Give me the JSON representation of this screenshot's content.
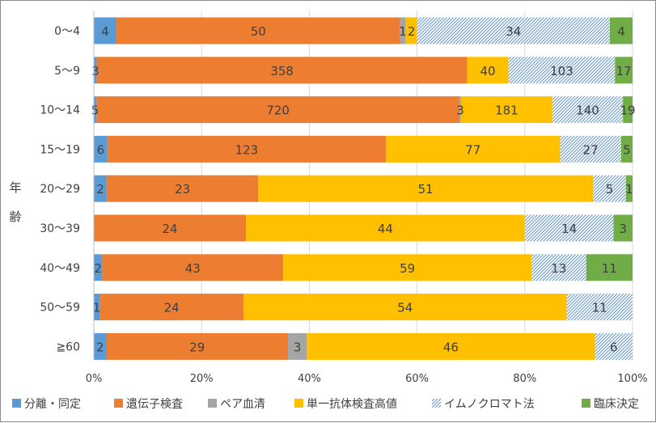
{
  "chart_data": {
    "type": "bar",
    "orientation": "horizontal",
    "stacked": "percent",
    "ylabel": "年齢",
    "categories": [
      "0～4",
      "5～9",
      "10～14",
      "15～19",
      "20～29",
      "30～39",
      "40～49",
      "50～59",
      "≧60"
    ],
    "x_ticks": [
      "0%",
      "20%",
      "40%",
      "60%",
      "80%",
      "100%"
    ],
    "xlim": [
      0,
      100
    ],
    "grid": true,
    "legend_position": "bottom",
    "series": [
      {
        "name": "分離・同定",
        "color": "#5b9bd5",
        "pattern": "solid",
        "values": [
          4,
          3,
          5,
          6,
          2,
          0,
          2,
          1,
          2
        ]
      },
      {
        "name": "遺伝子検査",
        "color": "#ed7d31",
        "pattern": "solid",
        "values": [
          50,
          358,
          720,
          123,
          23,
          24,
          43,
          24,
          29
        ]
      },
      {
        "name": "ペア血清",
        "color": "#a5a5a5",
        "pattern": "solid",
        "values": [
          1,
          0,
          3,
          0,
          0,
          0,
          0,
          0,
          3
        ]
      },
      {
        "name": "単一抗体検査高値",
        "color": "#ffc000",
        "pattern": "solid",
        "values": [
          2,
          40,
          181,
          77,
          51,
          44,
          59,
          54,
          46
        ]
      },
      {
        "name": "イムノクロマト法",
        "color": "#5b9bd5",
        "pattern": "hatch",
        "values": [
          34,
          103,
          140,
          27,
          5,
          14,
          13,
          11,
          6
        ]
      },
      {
        "name": "臨床決定",
        "color": "#70ad47",
        "pattern": "solid",
        "values": [
          4,
          17,
          19,
          5,
          1,
          3,
          11,
          0,
          0
        ]
      }
    ],
    "data_labels": [
      [
        "4",
        "50",
        "1",
        "2",
        "34",
        "4"
      ],
      [
        "3",
        "358",
        "",
        "40",
        "103",
        "17"
      ],
      [
        "5",
        "720",
        "3",
        "181",
        "140",
        "19"
      ],
      [
        "6",
        "123",
        "",
        "77",
        "27",
        "5"
      ],
      [
        "2",
        "23",
        "",
        "51",
        "5",
        "1"
      ],
      [
        "",
        "24",
        "",
        "44",
        "14",
        "3"
      ],
      [
        "2",
        "43",
        "",
        "59",
        "13",
        "11"
      ],
      [
        "1",
        "24",
        "",
        "54",
        "11",
        ""
      ],
      [
        "2",
        "29",
        "3",
        "46",
        "6",
        ""
      ]
    ]
  }
}
